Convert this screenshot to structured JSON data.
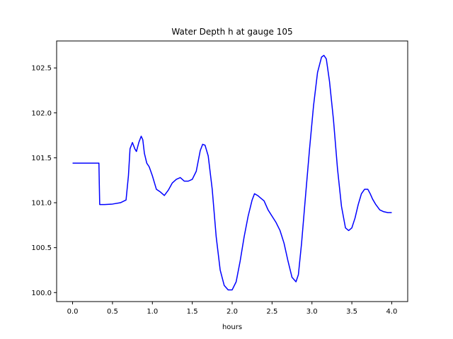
{
  "chart_data": {
    "type": "line",
    "title": "Water Depth h at gauge 105",
    "xlabel": "hours",
    "ylabel": "",
    "xlim": [
      -0.2,
      4.2
    ],
    "ylim": [
      99.9,
      102.8
    ],
    "xticks": [
      0.0,
      0.5,
      1.0,
      1.5,
      2.0,
      2.5,
      3.0,
      3.5,
      4.0
    ],
    "xtick_labels": [
      "0.0",
      "0.5",
      "1.0",
      "1.5",
      "2.0",
      "2.5",
      "3.0",
      "3.5",
      "4.0"
    ],
    "yticks": [
      100.0,
      100.5,
      101.0,
      101.5,
      102.0,
      102.5
    ],
    "ytick_labels": [
      "100.0",
      "100.5",
      "101.0",
      "101.5",
      "102.0",
      "102.5"
    ],
    "grid": false,
    "series": [
      {
        "color": "#0000ff",
        "x": [
          0.0,
          0.1,
          0.2,
          0.33,
          0.335,
          0.34,
          0.4,
          0.5,
          0.6,
          0.67,
          0.7,
          0.72,
          0.75,
          0.78,
          0.8,
          0.83,
          0.86,
          0.88,
          0.9,
          0.93,
          0.96,
          1.0,
          1.05,
          1.1,
          1.15,
          1.2,
          1.25,
          1.3,
          1.35,
          1.4,
          1.45,
          1.5,
          1.55,
          1.6,
          1.63,
          1.66,
          1.7,
          1.75,
          1.8,
          1.85,
          1.9,
          1.95,
          2.0,
          2.05,
          2.1,
          2.15,
          2.2,
          2.25,
          2.28,
          2.32,
          2.36,
          2.4,
          2.45,
          2.5,
          2.55,
          2.6,
          2.65,
          2.7,
          2.75,
          2.8,
          2.83,
          2.87,
          2.92,
          2.97,
          3.02,
          3.07,
          3.12,
          3.15,
          3.18,
          3.22,
          3.27,
          3.32,
          3.37,
          3.42,
          3.46,
          3.5,
          3.54,
          3.58,
          3.62,
          3.66,
          3.7,
          3.73,
          3.76,
          3.8,
          3.85,
          3.9,
          3.95,
          4.0
        ],
        "y": [
          101.44,
          101.44,
          101.44,
          101.44,
          101.2,
          100.98,
          100.98,
          100.985,
          101.0,
          101.03,
          101.3,
          101.6,
          101.67,
          101.6,
          101.57,
          101.67,
          101.74,
          101.7,
          101.55,
          101.44,
          101.4,
          101.3,
          101.15,
          101.12,
          101.08,
          101.14,
          101.22,
          101.26,
          101.28,
          101.24,
          101.24,
          101.26,
          101.35,
          101.58,
          101.65,
          101.64,
          101.52,
          101.15,
          100.62,
          100.25,
          100.08,
          100.03,
          100.03,
          100.12,
          100.35,
          100.62,
          100.85,
          101.03,
          101.1,
          101.08,
          101.05,
          101.02,
          100.92,
          100.85,
          100.78,
          100.69,
          100.55,
          100.35,
          100.17,
          100.12,
          100.2,
          100.55,
          101.08,
          101.6,
          102.08,
          102.45,
          102.62,
          102.64,
          102.6,
          102.35,
          101.92,
          101.38,
          100.96,
          100.72,
          100.69,
          100.72,
          100.83,
          100.98,
          101.1,
          101.15,
          101.15,
          101.1,
          101.04,
          100.98,
          100.92,
          100.9,
          100.89,
          100.89
        ]
      }
    ]
  }
}
